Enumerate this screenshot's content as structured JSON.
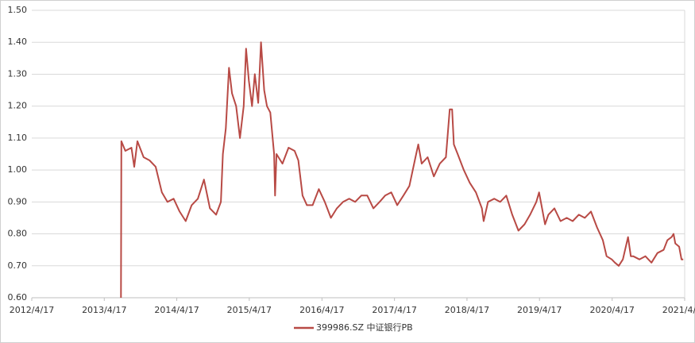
{
  "chart_data": {
    "type": "line",
    "x": [
      "2013/7/10",
      "2013/7/12",
      "2013/8/1",
      "2013/9/1",
      "2013/9/15",
      "2013/10/1",
      "2013/11/1",
      "2013/12/1",
      "2014/1/1",
      "2014/2/1",
      "2014/3/1",
      "2014/4/1",
      "2014/5/1",
      "2014/6/1",
      "2014/7/1",
      "2014/8/1",
      "2014/9/1",
      "2014/10/1",
      "2014/11/1",
      "2014/11/25",
      "2014/12/5",
      "2014/12/20",
      "2015/1/5",
      "2015/1/20",
      "2015/2/10",
      "2015/3/1",
      "2015/3/20",
      "2015/4/1",
      "2015/4/15",
      "2015/5/1",
      "2015/5/15",
      "2015/6/1",
      "2015/6/15",
      "2015/7/1",
      "2015/7/15",
      "2015/8/1",
      "2015/8/20",
      "2015/8/25",
      "2015/9/1",
      "2015/10/1",
      "2015/11/1",
      "2015/12/1",
      "2015/12/20",
      "2016/1/10",
      "2016/2/1",
      "2016/3/1",
      "2016/4/1",
      "2016/5/1",
      "2016/6/1",
      "2016/7/1",
      "2016/8/1",
      "2016/9/1",
      "2016/10/1",
      "2016/11/1",
      "2016/12/1",
      "2017/1/1",
      "2017/2/1",
      "2017/3/1",
      "2017/4/1",
      "2017/5/1",
      "2017/6/1",
      "2017/7/1",
      "2017/8/1",
      "2017/8/15",
      "2017/9/1",
      "2017/10/1",
      "2017/11/1",
      "2017/12/1",
      "2018/1/1",
      "2018/1/20",
      "2018/2/1",
      "2018/2/10",
      "2018/3/1",
      "2018/4/1",
      "2018/5/1",
      "2018/6/1",
      "2018/7/1",
      "2018/7/10",
      "2018/8/1",
      "2018/9/1",
      "2018/10/1",
      "2018/11/1",
      "2018/12/1",
      "2019/1/1",
      "2019/2/1",
      "2019/3/1",
      "2019/4/1",
      "2019/4/15",
      "2019/5/15",
      "2019/6/1",
      "2019/7/1",
      "2019/8/1",
      "2019/9/1",
      "2019/10/1",
      "2019/11/1",
      "2019/12/1",
      "2020/1/1",
      "2020/2/1",
      "2020/3/1",
      "2020/3/20",
      "2020/4/15",
      "2020/5/1",
      "2020/5/20",
      "2020/6/10",
      "2020/7/6",
      "2020/7/20",
      "2020/8/1",
      "2020/9/1",
      "2020/10/1",
      "2020/11/1",
      "2020/12/1",
      "2021/1/1",
      "2021/1/20",
      "2021/2/10",
      "2021/2/20",
      "2021/3/1",
      "2021/3/20",
      "2021/4/1",
      "2021/4/10"
    ],
    "series": [
      {
        "name": "399986.SZ 中证银行PB",
        "color": "#b84a45",
        "values": [
          0.6,
          1.09,
          1.06,
          1.07,
          1.01,
          1.09,
          1.04,
          1.03,
          1.01,
          0.93,
          0.9,
          0.91,
          0.87,
          0.84,
          0.89,
          0.91,
          0.97,
          0.88,
          0.86,
          0.9,
          1.05,
          1.13,
          1.32,
          1.24,
          1.2,
          1.1,
          1.2,
          1.38,
          1.28,
          1.2,
          1.3,
          1.21,
          1.4,
          1.25,
          1.2,
          1.18,
          1.05,
          0.92,
          1.05,
          1.02,
          1.07,
          1.06,
          1.03,
          0.92,
          0.89,
          0.89,
          0.94,
          0.9,
          0.85,
          0.88,
          0.9,
          0.91,
          0.9,
          0.92,
          0.92,
          0.88,
          0.9,
          0.92,
          0.93,
          0.89,
          0.92,
          0.95,
          1.04,
          1.08,
          1.02,
          1.04,
          0.98,
          1.02,
          1.04,
          1.19,
          1.19,
          1.08,
          1.05,
          1.0,
          0.96,
          0.93,
          0.88,
          0.84,
          0.9,
          0.91,
          0.9,
          0.92,
          0.86,
          0.81,
          0.83,
          0.86,
          0.9,
          0.93,
          0.83,
          0.86,
          0.88,
          0.84,
          0.85,
          0.84,
          0.86,
          0.85,
          0.87,
          0.82,
          0.78,
          0.73,
          0.72,
          0.71,
          0.7,
          0.72,
          0.79,
          0.73,
          0.73,
          0.72,
          0.73,
          0.71,
          0.74,
          0.75,
          0.78,
          0.79,
          0.8,
          0.77,
          0.76,
          0.72,
          0.72
        ]
      }
    ],
    "xlim": [
      "2012/4/17",
      "2021/4/17"
    ],
    "xticks": [
      "2012/4/17",
      "2013/4/17",
      "2014/4/17",
      "2015/4/17",
      "2016/4/17",
      "2017/4/17",
      "2018/4/17",
      "2019/4/17",
      "2020/4/17",
      "2021/4/17"
    ],
    "ylim": [
      0.6,
      1.5
    ],
    "yticks": [
      {
        "value": 0.6,
        "label": "0.60"
      },
      {
        "value": 0.7,
        "label": "0.70"
      },
      {
        "value": 0.8,
        "label": "0.80"
      },
      {
        "value": 0.9,
        "label": "0.90"
      },
      {
        "value": 1.0,
        "label": "1.00"
      },
      {
        "value": 1.1,
        "label": "1.10"
      },
      {
        "value": 1.2,
        "label": "1.20"
      },
      {
        "value": 1.3,
        "label": "1.30"
      },
      {
        "value": 1.4,
        "label": "1.40"
      },
      {
        "value": 1.5,
        "label": "1.50"
      }
    ],
    "grid": true
  }
}
